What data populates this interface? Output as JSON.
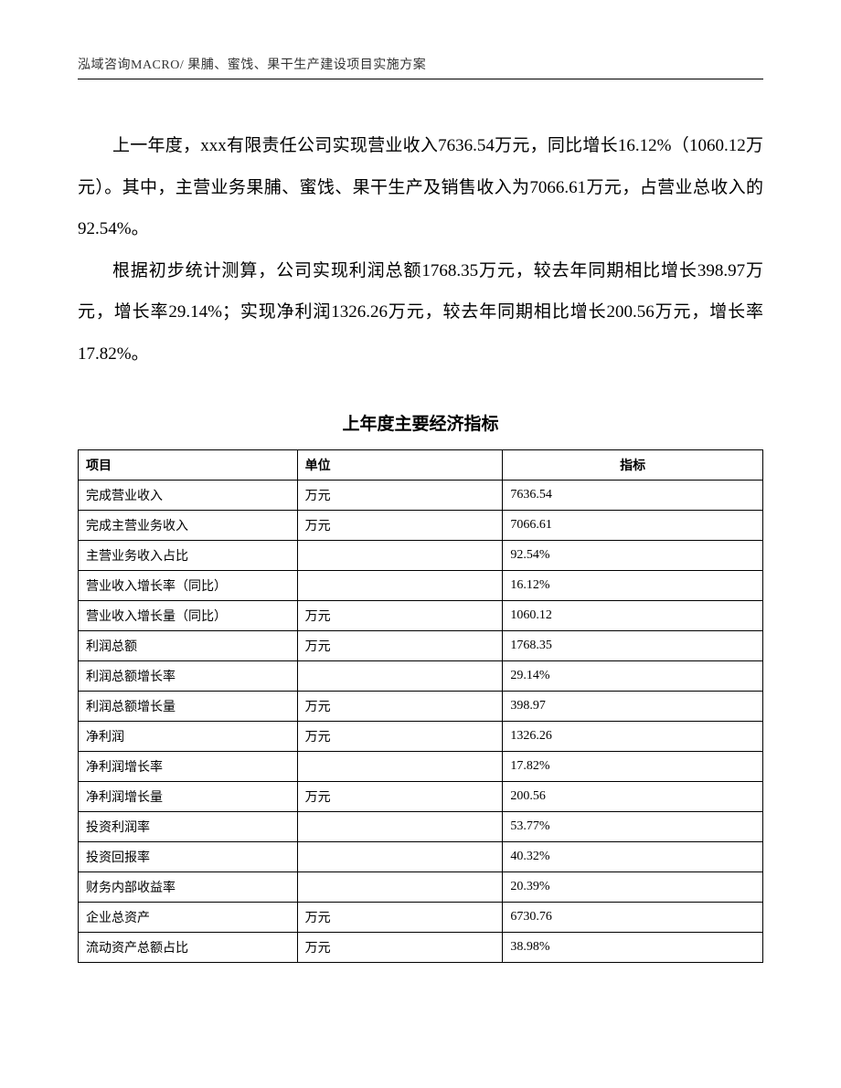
{
  "header": {
    "text": "泓域咨询MACRO/ 果脯、蜜饯、果干生产建设项目实施方案"
  },
  "paragraphs": {
    "p1": "上一年度，xxx有限责任公司实现营业收入7636.54万元，同比增长16.12%（1060.12万元）。其中，主营业务果脯、蜜饯、果干生产及销售收入为7066.61万元，占营业总收入的92.54%。",
    "p2": "根据初步统计测算，公司实现利润总额1768.35万元，较去年同期相比增长398.97万元，增长率29.14%；实现净利润1326.26万元，较去年同期相比增长200.56万元，增长率17.82%。"
  },
  "table": {
    "title": "上年度主要经济指标",
    "columns": {
      "c1": "项目",
      "c2": "单位",
      "c3": "指标"
    },
    "rows": [
      {
        "c1": "完成营业收入",
        "c2": "万元",
        "c3": "7636.54"
      },
      {
        "c1": "完成主营业务收入",
        "c2": "万元",
        "c3": "7066.61"
      },
      {
        "c1": "主营业务收入占比",
        "c2": "",
        "c3": "92.54%"
      },
      {
        "c1": "营业收入增长率（同比）",
        "c2": "",
        "c3": "16.12%"
      },
      {
        "c1": "营业收入增长量（同比）",
        "c2": "万元",
        "c3": "1060.12"
      },
      {
        "c1": "利润总额",
        "c2": "万元",
        "c3": "1768.35"
      },
      {
        "c1": "利润总额增长率",
        "c2": "",
        "c3": "29.14%"
      },
      {
        "c1": "利润总额增长量",
        "c2": "万元",
        "c3": "398.97"
      },
      {
        "c1": "净利润",
        "c2": "万元",
        "c3": "1326.26"
      },
      {
        "c1": "净利润增长率",
        "c2": "",
        "c3": "17.82%"
      },
      {
        "c1": "净利润增长量",
        "c2": "万元",
        "c3": "200.56"
      },
      {
        "c1": "投资利润率",
        "c2": "",
        "c3": "53.77%"
      },
      {
        "c1": "投资回报率",
        "c2": "",
        "c3": "40.32%"
      },
      {
        "c1": "财务内部收益率",
        "c2": "",
        "c3": "20.39%"
      },
      {
        "c1": "企业总资产",
        "c2": "万元",
        "c3": "6730.76"
      },
      {
        "c1": "流动资产总额占比",
        "c2": "万元",
        "c3": "38.98%"
      }
    ]
  }
}
